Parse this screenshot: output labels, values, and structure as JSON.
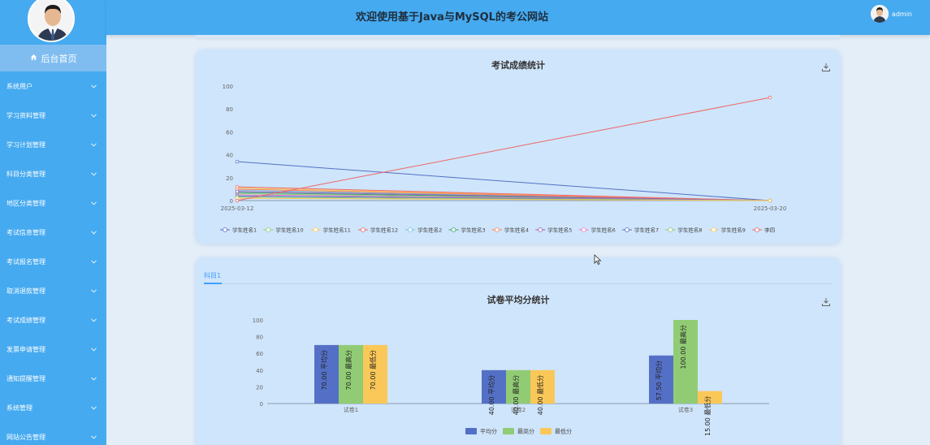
{
  "header": {
    "title": "欢迎使用基于Java与MySQL的考公网站",
    "user": "admin"
  },
  "sidebar": {
    "home": "后台首页",
    "items": [
      {
        "label": "系统用户"
      },
      {
        "label": "学习资料管理"
      },
      {
        "label": "学习计划管理"
      },
      {
        "label": "科目分类管理"
      },
      {
        "label": "地区分类管理"
      },
      {
        "label": "考试信息管理"
      },
      {
        "label": "考试报名管理"
      },
      {
        "label": "取消退款管理"
      },
      {
        "label": "考试成绩管理"
      },
      {
        "label": "发票申请管理"
      },
      {
        "label": "通知提醒管理"
      },
      {
        "label": "系统管理"
      },
      {
        "label": "网站公告管理"
      }
    ]
  },
  "card2": {
    "tab": "科目1"
  },
  "colors": {
    "sidebar": "#45aaf0",
    "accent": "#409eff",
    "card": "#cfe5fb"
  },
  "chart_data": [
    {
      "type": "line",
      "title": "考试成绩统计",
      "x": [
        "2025-03-12",
        "2025-03-20"
      ],
      "ylim": [
        0,
        100
      ],
      "yticks": [
        0,
        20,
        40,
        60,
        80,
        100
      ],
      "legend_position": "bottom",
      "series": [
        {
          "name": "学生姓名1",
          "values": [
            34,
            0
          ],
          "color": "#5470c6"
        },
        {
          "name": "学生姓名10",
          "values": [
            6,
            0
          ],
          "color": "#91cc75"
        },
        {
          "name": "学生姓名11",
          "values": [
            11,
            0
          ],
          "color": "#fac858"
        },
        {
          "name": "学生姓名12",
          "values": [
            12,
            0
          ],
          "color": "#ee6666"
        },
        {
          "name": "学生姓名2",
          "values": [
            9,
            0
          ],
          "color": "#73c0de"
        },
        {
          "name": "学生姓名3",
          "values": [
            7,
            0
          ],
          "color": "#3ba272"
        },
        {
          "name": "学生姓名4",
          "values": [
            10,
            0
          ],
          "color": "#fc8452"
        },
        {
          "name": "学生姓名5",
          "values": [
            8,
            0
          ],
          "color": "#9a60b4"
        },
        {
          "name": "学生姓名6",
          "values": [
            5,
            0
          ],
          "color": "#ea7ccc"
        },
        {
          "name": "学生姓名7",
          "values": [
            4,
            0
          ],
          "color": "#5470c6"
        },
        {
          "name": "学生姓名8",
          "values": [
            3,
            0
          ],
          "color": "#91cc75"
        },
        {
          "name": "学生姓名9",
          "values": [
            2,
            0
          ],
          "color": "#fac858"
        },
        {
          "name": "李四",
          "values": [
            0,
            90
          ],
          "color": "#ee6666"
        }
      ]
    },
    {
      "type": "bar",
      "title": "试卷平均分统计",
      "categories": [
        "试卷1",
        "试卷2",
        "试卷3"
      ],
      "ylim": [
        0,
        100
      ],
      "yticks": [
        0,
        20,
        40,
        60,
        80,
        100
      ],
      "legend_position": "bottom",
      "series": [
        {
          "name": "平均分",
          "values": [
            70,
            40,
            57.5
          ],
          "labels": [
            "70.00",
            "40.00",
            "57.50"
          ],
          "color": "#5470c6"
        },
        {
          "name": "最高分",
          "values": [
            70,
            40,
            100
          ],
          "labels": [
            "70.00",
            "40.00",
            "100.00"
          ],
          "color": "#91cc75"
        },
        {
          "name": "最低分",
          "values": [
            70,
            40,
            15
          ],
          "labels": [
            "70.00",
            "40.00",
            "15.00"
          ],
          "color": "#fac858"
        }
      ]
    }
  ]
}
